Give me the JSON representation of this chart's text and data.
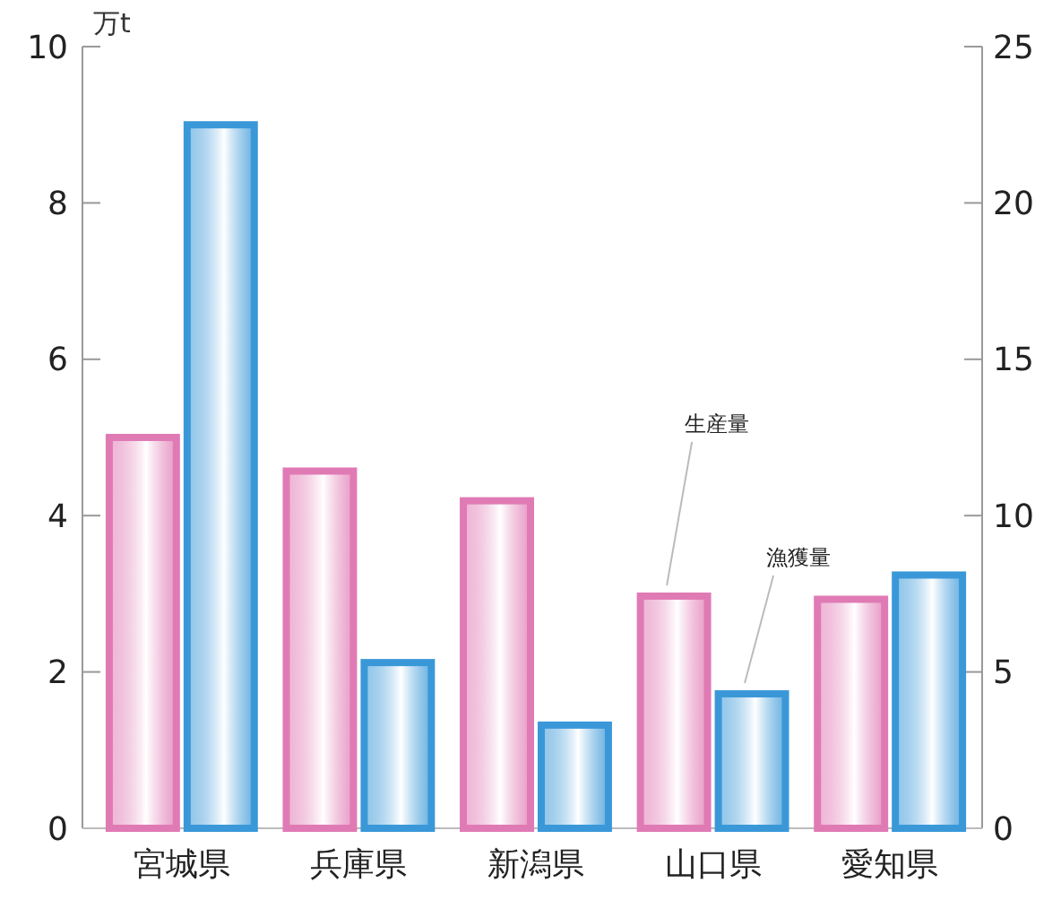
{
  "chart_data": {
    "type": "bar",
    "ylabel": "万t",
    "categories": [
      "宮城県",
      "兵庫県",
      "新潟県",
      "山口県",
      "愛知県"
    ],
    "series": [
      {
        "name": "生産量",
        "color": "#e07ab4",
        "values": [
          5.0,
          4.57,
          4.19,
          2.97,
          2.93
        ]
      },
      {
        "name": "漁獲量",
        "color": "#3a98d8",
        "axis": "y2",
        "values": [
          22.5,
          5.3,
          3.3,
          4.3,
          8.1
        ]
      }
    ],
    "ylim": [
      0,
      10
    ],
    "yticks": [
      0,
      2,
      4,
      6,
      8,
      10
    ],
    "y2lim": [
      0,
      25
    ],
    "y2ticks": [
      0,
      5,
      10,
      15,
      20,
      25
    ],
    "grid": false
  }
}
